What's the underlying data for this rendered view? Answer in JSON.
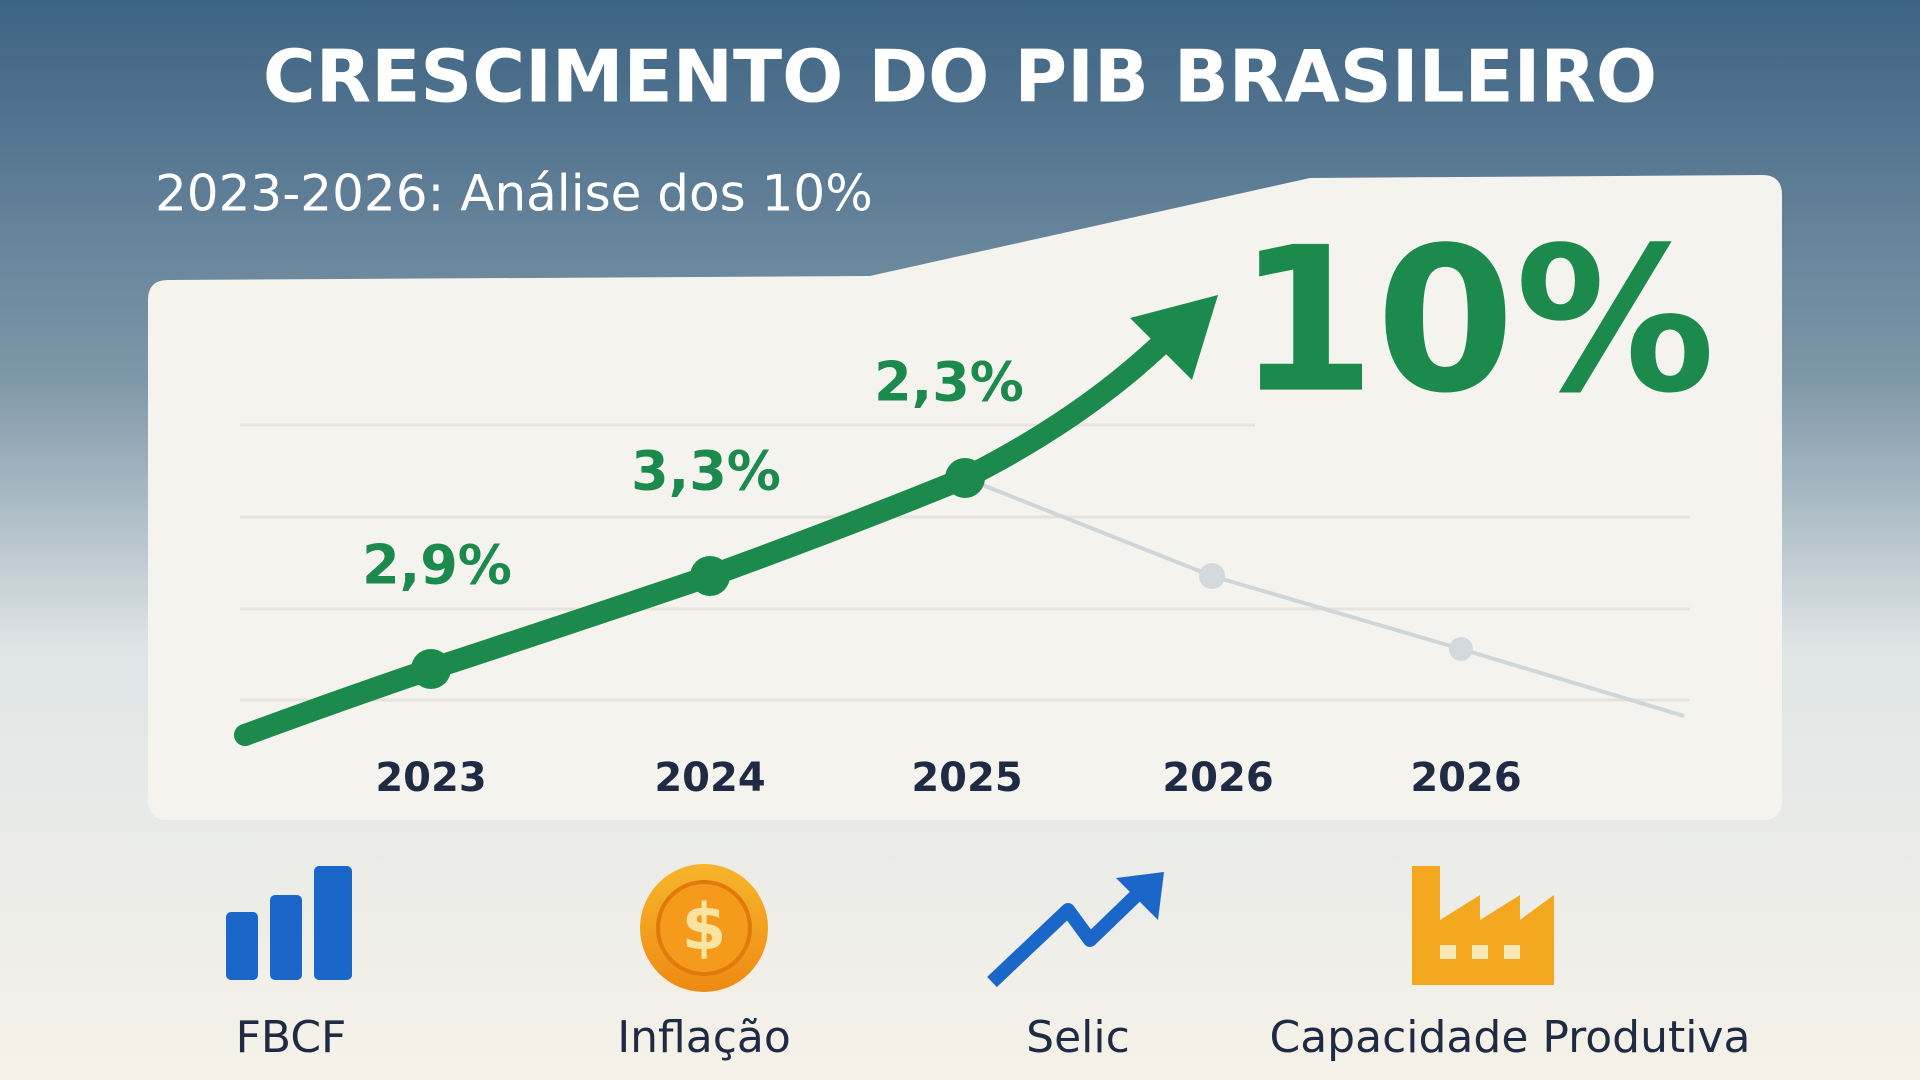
{
  "header": {
    "title": "CRESCIMENTO DO PIB BRASILEIRO",
    "subtitle": "2023-2026: Análise dos 10%"
  },
  "chart": {
    "point_labels": [
      "2,9%",
      "3,3%",
      "2,3%"
    ],
    "highlight": "10%",
    "years": [
      "2023",
      "2024",
      "2025",
      "2026",
      "2026"
    ]
  },
  "indicators": [
    {
      "label": "FBCF"
    },
    {
      "label": "Inflação"
    },
    {
      "label": "Selic"
    },
    {
      "label": "Capacidade Produtiva"
    }
  ]
}
